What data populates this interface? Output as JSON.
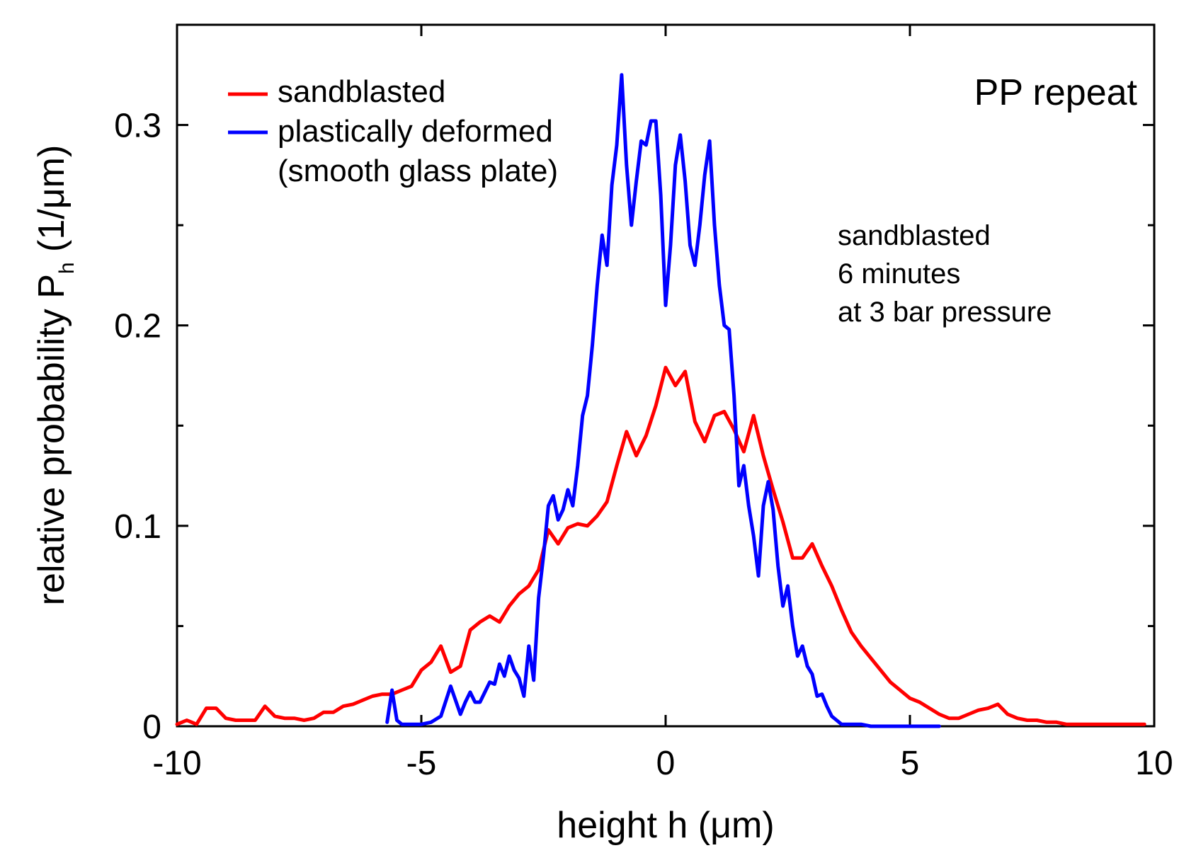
{
  "chart_data": {
    "type": "line",
    "panel_title": "PP repeat",
    "annotation": [
      "sandblasted",
      "6 minutes",
      "at 3 bar pressure"
    ],
    "xlabel": {
      "prefix": "height h  (",
      "unit": "μm",
      "suffix": ")"
    },
    "ylabel": {
      "prefix": "relative probability P",
      "subscript": "h",
      "suffix": "  (1/μm)"
    },
    "xlim": [
      -10,
      10
    ],
    "ylim": [
      0,
      0.35
    ],
    "xticks": [
      -10,
      -5,
      0,
      5,
      10
    ],
    "xtick_labels": [
      "-10",
      "-5",
      "0",
      "5",
      "10"
    ],
    "yticks": [
      0,
      0.1,
      0.2,
      0.3
    ],
    "ytick_labels": [
      "0",
      "0.1",
      "0.2",
      "0.3"
    ],
    "legend": {
      "placement": "top-left",
      "entries": [
        {
          "label": "sandblasted",
          "color": "#ff0000"
        },
        {
          "label": "plastically deformed",
          "label_line2": "(smooth glass plate)",
          "color": "#0000ff"
        }
      ]
    },
    "series": [
      {
        "name": "sandblasted",
        "color": "#ff0000",
        "x": [
          -10,
          -9.8,
          -9.6,
          -9.4,
          -9.2,
          -9.0,
          -8.8,
          -8.6,
          -8.4,
          -8.2,
          -8.0,
          -7.8,
          -7.6,
          -7.4,
          -7.2,
          -7.0,
          -6.8,
          -6.6,
          -6.4,
          -6.2,
          -6.0,
          -5.8,
          -5.6,
          -5.4,
          -5.2,
          -5.0,
          -4.8,
          -4.6,
          -4.4,
          -4.2,
          -4.0,
          -3.8,
          -3.6,
          -3.4,
          -3.2,
          -3.0,
          -2.8,
          -2.6,
          -2.4,
          -2.2,
          -2.0,
          -1.8,
          -1.6,
          -1.4,
          -1.2,
          -1.0,
          -0.8,
          -0.6,
          -0.4,
          -0.2,
          0.0,
          0.2,
          0.4,
          0.6,
          0.8,
          1.0,
          1.2,
          1.4,
          1.6,
          1.8,
          2.0,
          2.2,
          2.4,
          2.6,
          2.8,
          3.0,
          3.2,
          3.4,
          3.6,
          3.8,
          4.0,
          4.2,
          4.4,
          4.6,
          4.8,
          5.0,
          5.2,
          5.4,
          5.6,
          5.8,
          6.0,
          6.2,
          6.4,
          6.6,
          6.8,
          7.0,
          7.2,
          7.4,
          7.6,
          7.8,
          8.0,
          8.2,
          8.4,
          8.6,
          8.8,
          9.0,
          9.2,
          9.4,
          9.6,
          9.8
        ],
        "y": [
          0.001,
          0.003,
          0.001,
          0.009,
          0.009,
          0.004,
          0.003,
          0.003,
          0.003,
          0.01,
          0.005,
          0.004,
          0.004,
          0.003,
          0.004,
          0.007,
          0.007,
          0.01,
          0.011,
          0.013,
          0.015,
          0.016,
          0.016,
          0.018,
          0.02,
          0.028,
          0.032,
          0.04,
          0.027,
          0.03,
          0.048,
          0.052,
          0.055,
          0.052,
          0.06,
          0.066,
          0.07,
          0.078,
          0.098,
          0.091,
          0.099,
          0.101,
          0.1,
          0.105,
          0.112,
          0.13,
          0.147,
          0.135,
          0.145,
          0.16,
          0.179,
          0.17,
          0.177,
          0.152,
          0.142,
          0.155,
          0.157,
          0.148,
          0.137,
          0.155,
          0.135,
          0.118,
          0.102,
          0.084,
          0.084,
          0.091,
          0.08,
          0.07,
          0.058,
          0.047,
          0.04,
          0.034,
          0.028,
          0.022,
          0.018,
          0.014,
          0.012,
          0.009,
          0.006,
          0.004,
          0.004,
          0.006,
          0.008,
          0.009,
          0.011,
          0.006,
          0.004,
          0.003,
          0.003,
          0.002,
          0.002,
          0.001,
          0.001,
          0.001,
          0.001,
          0.001,
          0.001,
          0.001,
          0.001,
          0.001
        ]
      },
      {
        "name": "plastically deformed (smooth glass plate)",
        "color": "#0000ff",
        "x": [
          -5.7,
          -5.6,
          -5.5,
          -5.4,
          -5.2,
          -5.0,
          -4.8,
          -4.6,
          -4.4,
          -4.3,
          -4.2,
          -4.1,
          -4.0,
          -3.9,
          -3.8,
          -3.7,
          -3.6,
          -3.5,
          -3.4,
          -3.3,
          -3.2,
          -3.1,
          -3.0,
          -2.9,
          -2.8,
          -2.7,
          -2.6,
          -2.5,
          -2.4,
          -2.3,
          -2.2,
          -2.1,
          -2.0,
          -1.9,
          -1.8,
          -1.7,
          -1.6,
          -1.5,
          -1.4,
          -1.3,
          -1.2,
          -1.1,
          -1.0,
          -0.9,
          -0.8,
          -0.7,
          -0.6,
          -0.5,
          -0.4,
          -0.3,
          -0.2,
          -0.1,
          0.0,
          0.1,
          0.2,
          0.3,
          0.4,
          0.5,
          0.6,
          0.7,
          0.8,
          0.9,
          1.0,
          1.1,
          1.2,
          1.3,
          1.4,
          1.5,
          1.6,
          1.7,
          1.8,
          1.9,
          2.0,
          2.1,
          2.2,
          2.3,
          2.4,
          2.5,
          2.6,
          2.7,
          2.8,
          2.9,
          3.0,
          3.1,
          3.2,
          3.3,
          3.4,
          3.5,
          3.6,
          3.7,
          3.8,
          4.0,
          4.2,
          4.4,
          4.6,
          4.8,
          5.0,
          5.2,
          5.4,
          5.6
        ],
        "y": [
          0.002,
          0.018,
          0.003,
          0.001,
          0.001,
          0.001,
          0.002,
          0.005,
          0.02,
          0.013,
          0.006,
          0.012,
          0.017,
          0.012,
          0.012,
          0.017,
          0.022,
          0.021,
          0.031,
          0.025,
          0.035,
          0.028,
          0.024,
          0.015,
          0.04,
          0.023,
          0.064,
          0.085,
          0.11,
          0.115,
          0.103,
          0.108,
          0.118,
          0.11,
          0.13,
          0.155,
          0.165,
          0.19,
          0.22,
          0.245,
          0.23,
          0.27,
          0.29,
          0.325,
          0.28,
          0.25,
          0.272,
          0.292,
          0.29,
          0.302,
          0.302,
          0.265,
          0.21,
          0.24,
          0.28,
          0.295,
          0.272,
          0.24,
          0.23,
          0.25,
          0.275,
          0.292,
          0.25,
          0.22,
          0.2,
          0.198,
          0.165,
          0.12,
          0.13,
          0.11,
          0.095,
          0.075,
          0.11,
          0.122,
          0.108,
          0.08,
          0.06,
          0.07,
          0.05,
          0.035,
          0.04,
          0.03,
          0.026,
          0.015,
          0.016,
          0.01,
          0.005,
          0.003,
          0.001,
          0.001,
          0.001,
          0.001,
          0.0,
          0.0,
          0.0,
          0.0,
          0.0,
          0.0,
          0.0,
          0.0
        ]
      }
    ]
  }
}
